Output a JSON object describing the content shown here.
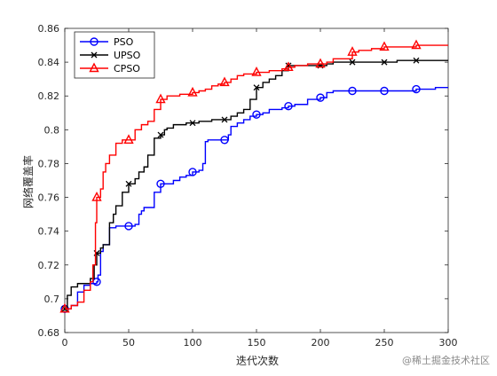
{
  "chart_data": {
    "type": "line",
    "title": "",
    "xlabel": "迭代次数",
    "ylabel": "网络覆盖率",
    "xlim": [
      0,
      300
    ],
    "ylim": [
      0.68,
      0.86
    ],
    "xticks": [
      0,
      50,
      100,
      150,
      200,
      250,
      300
    ],
    "yticks": [
      0.68,
      0.7,
      0.72,
      0.74,
      0.76,
      0.78,
      0.8,
      0.82,
      0.84,
      0.86
    ],
    "ytick_labels": [
      "0.68",
      "0.7",
      "0.72",
      "0.74",
      "0.76",
      "0.78",
      "0.8",
      "0.82",
      "0.84",
      "0.86"
    ],
    "grid": false,
    "legend_position": "top-left",
    "series": [
      {
        "name": "PSO",
        "color": "#0000ff",
        "marker": "circle",
        "x": [
          0,
          2,
          5,
          10,
          15,
          20,
          25,
          26,
          28,
          30,
          35,
          40,
          45,
          50,
          55,
          58,
          60,
          62,
          65,
          70,
          75,
          80,
          85,
          90,
          95,
          100,
          105,
          108,
          110,
          112,
          115,
          120,
          125,
          128,
          130,
          135,
          140,
          145,
          150,
          155,
          160,
          170,
          175,
          180,
          190,
          200,
          205,
          210,
          220,
          225,
          230,
          240,
          250,
          260,
          275,
          280,
          290,
          300
        ],
        "y": [
          0.694,
          0.694,
          0.696,
          0.704,
          0.708,
          0.709,
          0.71,
          0.714,
          0.728,
          0.732,
          0.742,
          0.743,
          0.743,
          0.743,
          0.744,
          0.75,
          0.752,
          0.754,
          0.754,
          0.763,
          0.768,
          0.768,
          0.77,
          0.772,
          0.773,
          0.775,
          0.776,
          0.78,
          0.793,
          0.794,
          0.794,
          0.794,
          0.794,
          0.797,
          0.802,
          0.804,
          0.806,
          0.808,
          0.809,
          0.81,
          0.812,
          0.813,
          0.814,
          0.815,
          0.818,
          0.819,
          0.822,
          0.823,
          0.823,
          0.823,
          0.823,
          0.823,
          0.823,
          0.823,
          0.824,
          0.824,
          0.825,
          0.825
        ],
        "marker_x": [
          0,
          25,
          50,
          75,
          100,
          125,
          150,
          175,
          200,
          225,
          250,
          275
        ]
      },
      {
        "name": "UPSO",
        "color": "#000000",
        "marker": "x",
        "x": [
          0,
          2,
          5,
          10,
          15,
          20,
          23,
          25,
          28,
          30,
          35,
          38,
          40,
          45,
          50,
          55,
          58,
          62,
          65,
          70,
          75,
          78,
          80,
          85,
          90,
          95,
          100,
          105,
          110,
          115,
          120,
          125,
          130,
          135,
          140,
          145,
          150,
          155,
          160,
          165,
          170,
          175,
          180,
          190,
          200,
          205,
          210,
          225,
          240,
          250,
          260,
          275,
          290,
          300
        ],
        "y": [
          0.694,
          0.702,
          0.707,
          0.709,
          0.709,
          0.712,
          0.72,
          0.727,
          0.73,
          0.732,
          0.745,
          0.75,
          0.755,
          0.763,
          0.768,
          0.771,
          0.775,
          0.778,
          0.785,
          0.795,
          0.797,
          0.8,
          0.801,
          0.803,
          0.803,
          0.804,
          0.804,
          0.805,
          0.805,
          0.806,
          0.806,
          0.806,
          0.808,
          0.81,
          0.812,
          0.818,
          0.825,
          0.828,
          0.83,
          0.832,
          0.835,
          0.838,
          0.838,
          0.838,
          0.838,
          0.839,
          0.84,
          0.84,
          0.84,
          0.84,
          0.841,
          0.841,
          0.841,
          0.841
        ],
        "marker_x": [
          0,
          25,
          50,
          75,
          100,
          125,
          150,
          175,
          200,
          225,
          250,
          275
        ]
      },
      {
        "name": "CPSO",
        "color": "#ff0000",
        "marker": "triangle",
        "x": [
          0,
          5,
          10,
          15,
          20,
          22,
          24,
          25,
          28,
          30,
          32,
          35,
          40,
          45,
          50,
          55,
          60,
          65,
          70,
          75,
          80,
          90,
          100,
          105,
          110,
          115,
          120,
          125,
          130,
          135,
          140,
          150,
          160,
          170,
          175,
          180,
          190,
          200,
          205,
          210,
          225,
          230,
          240,
          250,
          260,
          275,
          285,
          300
        ],
        "y": [
          0.694,
          0.696,
          0.698,
          0.705,
          0.71,
          0.72,
          0.745,
          0.76,
          0.765,
          0.775,
          0.78,
          0.785,
          0.792,
          0.794,
          0.794,
          0.8,
          0.803,
          0.805,
          0.812,
          0.818,
          0.82,
          0.821,
          0.822,
          0.823,
          0.824,
          0.826,
          0.827,
          0.828,
          0.83,
          0.832,
          0.833,
          0.834,
          0.835,
          0.836,
          0.837,
          0.838,
          0.839,
          0.839,
          0.84,
          0.842,
          0.846,
          0.847,
          0.848,
          0.849,
          0.849,
          0.85,
          0.85,
          0.85
        ],
        "marker_x": [
          0,
          25,
          50,
          75,
          100,
          125,
          150,
          175,
          200,
          225,
          250,
          275
        ]
      }
    ]
  },
  "watermark": "@稀土掘金技术社区"
}
